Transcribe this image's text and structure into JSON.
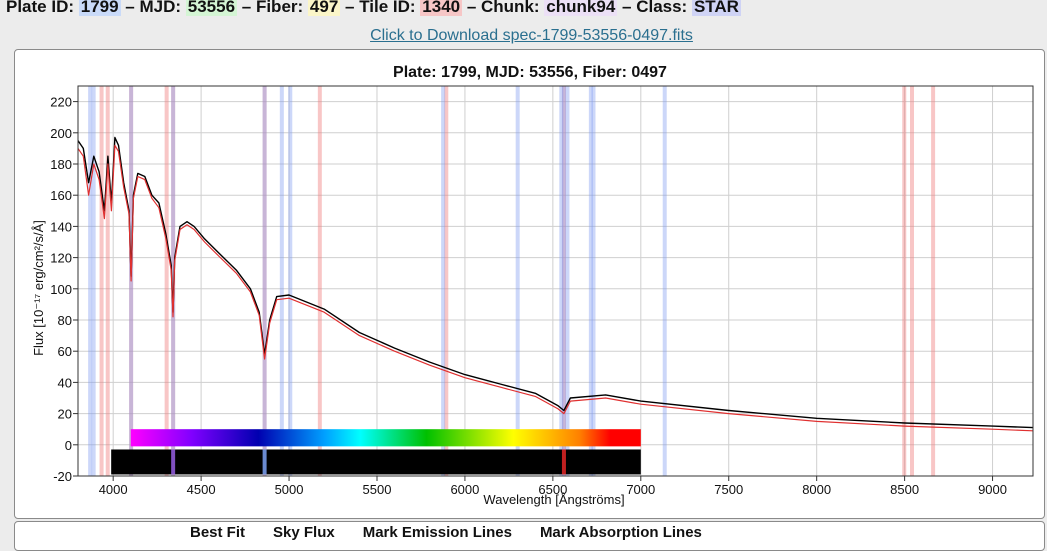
{
  "header": {
    "items": [
      {
        "label": "Plate ID:",
        "value": "1799",
        "color": "#c9daf8"
      },
      {
        "label": "MJD:",
        "value": "53556",
        "color": "#d4f5d4"
      },
      {
        "label": "Fiber:",
        "value": "497",
        "color": "#fbf6c8"
      },
      {
        "label": "Tile ID:",
        "value": "1340",
        "color": "#f6c6c6"
      },
      {
        "label": "Chunk:",
        "value": "chunk94",
        "color": "#ece0f6"
      },
      {
        "label": "Class:",
        "value": "STAR",
        "color": "#cfd3f5"
      }
    ],
    "separator": "–",
    "download_link": "Click to Download spec-1799-53556-0497.fits"
  },
  "controls": [
    "Best Fit",
    "Sky Flux",
    "Mark Emission Lines",
    "Mark Absorption Lines"
  ],
  "chart_data": {
    "type": "line",
    "title": "Plate: 1799, MJD: 53556, Fiber: 0497",
    "xlabel": "Wavelength [Ångströms]",
    "ylabel": "Flux [10⁻¹⁷ erg/cm²/s/Å]",
    "xlim": [
      3800,
      9230
    ],
    "ylim": [
      -20,
      230
    ],
    "xticks": [
      4000,
      4500,
      5000,
      5500,
      6000,
      6500,
      7000,
      7500,
      8000,
      8500,
      9000
    ],
    "yticks": [
      -20,
      0,
      20,
      40,
      60,
      80,
      100,
      120,
      140,
      160,
      180,
      200,
      220
    ],
    "grid": true,
    "series": [
      {
        "name": "",
        "color": "#000000",
        "x": [
          3800,
          3830,
          3860,
          3890,
          3920,
          3950,
          3970,
          3990,
          4010,
          4030,
          4060,
          4090,
          4102,
          4115,
          4140,
          4180,
          4220,
          4260,
          4300,
          4330,
          4340,
          4350,
          4380,
          4420,
          4460,
          4520,
          4600,
          4700,
          4780,
          4830,
          4861,
          4890,
          4930,
          5000,
          5200,
          5400,
          5600,
          5800,
          6000,
          6200,
          6400,
          6530,
          6563,
          6600,
          6800,
          7000,
          7500,
          8000,
          8500,
          9000,
          9230
        ],
        "y": [
          195,
          190,
          168,
          185,
          175,
          150,
          185,
          155,
          197,
          192,
          168,
          150,
          108,
          160,
          174,
          172,
          160,
          155,
          135,
          115,
          85,
          120,
          140,
          143,
          140,
          132,
          123,
          112,
          100,
          85,
          58,
          80,
          95,
          96,
          87,
          72,
          62,
          53,
          45,
          39,
          33,
          25,
          22,
          30,
          32,
          28,
          22,
          17,
          14,
          12,
          11
        ]
      },
      {
        "name": "",
        "color": "#e03030",
        "x": [
          3800,
          3830,
          3860,
          3890,
          3920,
          3950,
          3970,
          3990,
          4010,
          4030,
          4060,
          4090,
          4102,
          4115,
          4140,
          4180,
          4220,
          4260,
          4300,
          4330,
          4340,
          4350,
          4380,
          4420,
          4460,
          4520,
          4600,
          4700,
          4780,
          4830,
          4861,
          4890,
          4930,
          5000,
          5200,
          5400,
          5600,
          5800,
          6000,
          6200,
          6400,
          6530,
          6563,
          6600,
          6800,
          7000,
          7500,
          8000,
          8500,
          9000,
          9230
        ],
        "y": [
          190,
          185,
          160,
          180,
          170,
          145,
          180,
          150,
          192,
          188,
          165,
          148,
          105,
          158,
          172,
          170,
          158,
          152,
          132,
          112,
          82,
          118,
          138,
          141,
          138,
          130,
          121,
          110,
          98,
          83,
          55,
          78,
          93,
          94,
          85,
          70,
          60,
          51,
          43,
          37,
          31,
          23,
          20,
          28,
          30,
          26,
          20,
          15,
          12,
          10,
          9
        ]
      }
    ],
    "emission_lines": [
      3869,
      3889,
      4102,
      4341,
      4861,
      4959,
      5007,
      5876,
      6300,
      6548,
      6563,
      6583,
      6716,
      6731,
      7136
    ],
    "absorption_lines": [
      3934,
      3969,
      4102,
      4304,
      4341,
      4861,
      5175,
      5894,
      6563,
      8498,
      8542,
      8662
    ],
    "colorbar": {
      "start": 4100,
      "end": 7000
    },
    "sky_strip": {
      "start": 4000,
      "end": 7000,
      "markers": [
        4341,
        4861,
        6563
      ]
    }
  }
}
